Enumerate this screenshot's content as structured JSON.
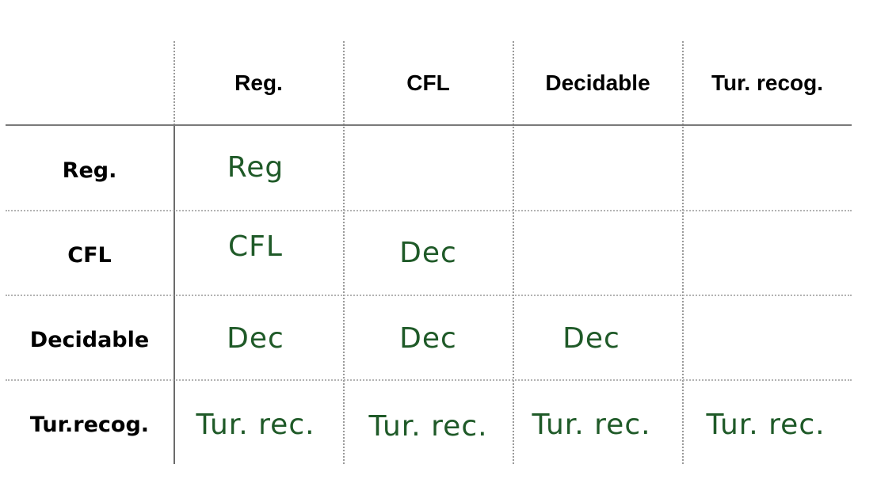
{
  "colors": {
    "header_text": "#000000",
    "value_text": "#1f5a28",
    "grid_dotted": "#9a9a9a",
    "grid_solid": "#6b6b6b"
  },
  "table": {
    "corner": "",
    "columns": [
      "Reg.",
      "CFL",
      "Decidable",
      "Tur. recog."
    ],
    "rows": [
      {
        "label": "Reg.",
        "cells": [
          "Reg",
          "",
          "",
          ""
        ]
      },
      {
        "label": "CFL",
        "cells": [
          "CFL",
          "Dec",
          "",
          ""
        ]
      },
      {
        "label": "Decidable",
        "cells": [
          "Dec",
          "Dec",
          "Dec",
          ""
        ]
      },
      {
        "label": "Tur.recog.",
        "cells": [
          "Tur. rec.",
          "Tur. rec.",
          "Tur. rec.",
          "Tur. rec."
        ]
      }
    ]
  }
}
